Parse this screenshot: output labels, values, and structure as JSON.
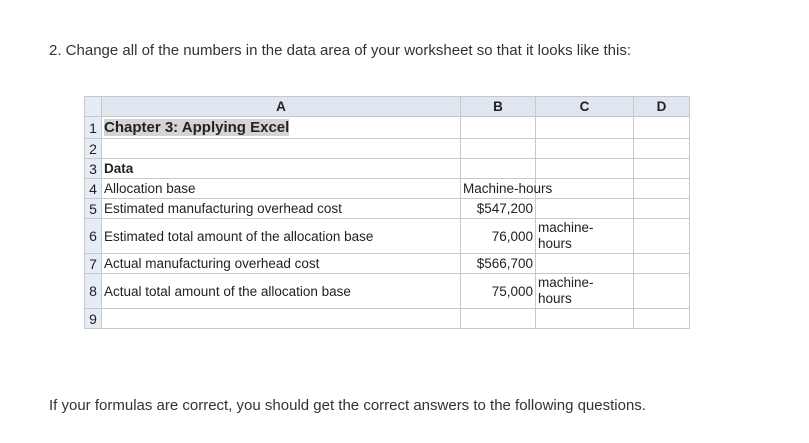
{
  "instruction": "2.  Change all of the numbers in the data area of your worksheet so that it looks like this:",
  "footer": "If your formulas are correct, you should get the correct answers to the following questions.",
  "sheet": {
    "columns": [
      "A",
      "B",
      "C",
      "D"
    ],
    "rows": [
      {
        "num": "1",
        "a": "Chapter 3: Applying Excel",
        "b": "",
        "c": ""
      },
      {
        "num": "2",
        "a": "",
        "b": "",
        "c": ""
      },
      {
        "num": "3",
        "a": "Data",
        "b": "",
        "c": ""
      },
      {
        "num": "4",
        "a": "Allocation base",
        "b": "Machine-hours",
        "c": ""
      },
      {
        "num": "5",
        "a": "Estimated manufacturing overhead cost",
        "b": "$547,200",
        "c": ""
      },
      {
        "num": "6",
        "a": "Estimated total amount of the allocation base",
        "b": "76,000",
        "c": "machine-hours"
      },
      {
        "num": "7",
        "a": "Actual manufacturing overhead cost",
        "b": "$566,700",
        "c": ""
      },
      {
        "num": "8",
        "a": "Actual total amount of the allocation base",
        "b": "75,000",
        "c": "machine-hours"
      },
      {
        "num": "9",
        "a": "",
        "b": "",
        "c": ""
      }
    ]
  }
}
